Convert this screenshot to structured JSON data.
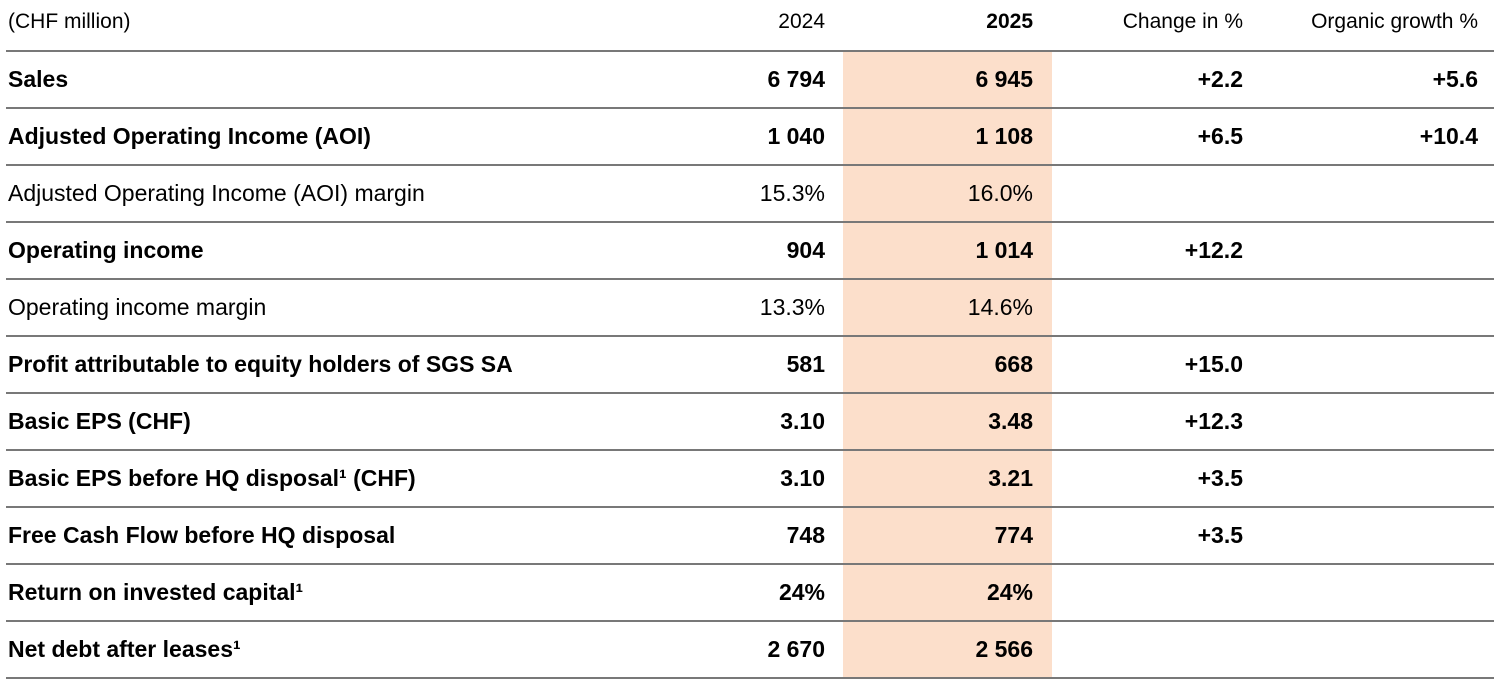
{
  "unit_label": "(CHF million)",
  "columns": {
    "y2024": "2024",
    "y2025": "2025",
    "change": "Change in %",
    "organic": "Organic growth %"
  },
  "colors": {
    "highlight_2025_column": "#fcdfcb",
    "row_divider": "#787878",
    "text": "#000000"
  },
  "table": {
    "rows": [
      {
        "label": "Sales",
        "v2024": "6 794",
        "v2025": "6 945",
        "change": "+2.2",
        "organic": "+5.6",
        "bold": true
      },
      {
        "label": "Adjusted Operating Income (AOI)",
        "v2024": "1 040",
        "v2025": "1 108",
        "change": "+6.5",
        "organic": "+10.4",
        "bold": true
      },
      {
        "label": "Adjusted Operating Income (AOI) margin",
        "v2024": "15.3%",
        "v2025": "16.0%",
        "change": "",
        "organic": "",
        "bold": false
      },
      {
        "label": "Operating income",
        "v2024": "904",
        "v2025": "1 014",
        "change": "+12.2",
        "organic": "",
        "bold": true
      },
      {
        "label": "Operating income margin",
        "v2024": "13.3%",
        "v2025": "14.6%",
        "change": "",
        "organic": "",
        "bold": false
      },
      {
        "label": "Profit attributable to equity holders of SGS SA",
        "v2024": "581",
        "v2025": "668",
        "change": "+15.0",
        "organic": "",
        "bold": true
      },
      {
        "label": "Basic EPS (CHF)",
        "v2024": "3.10",
        "v2025": "3.48",
        "change": "+12.3",
        "organic": "",
        "bold": true
      },
      {
        "label": "Basic EPS before HQ disposal¹ (CHF)",
        "v2024": "3.10",
        "v2025": "3.21",
        "change": "+3.5",
        "organic": "",
        "bold": true
      },
      {
        "label": "Free Cash Flow before HQ disposal",
        "v2024": "748",
        "v2025": "774",
        "change": "+3.5",
        "organic": "",
        "bold": true
      },
      {
        "label": "Return on invested capital¹",
        "v2024": "24%",
        "v2025": "24%",
        "change": "",
        "organic": "",
        "bold": true
      },
      {
        "label": "Net debt after leases¹",
        "v2024": "2 670",
        "v2025": "2 566",
        "change": "",
        "organic": "",
        "bold": true
      }
    ]
  }
}
